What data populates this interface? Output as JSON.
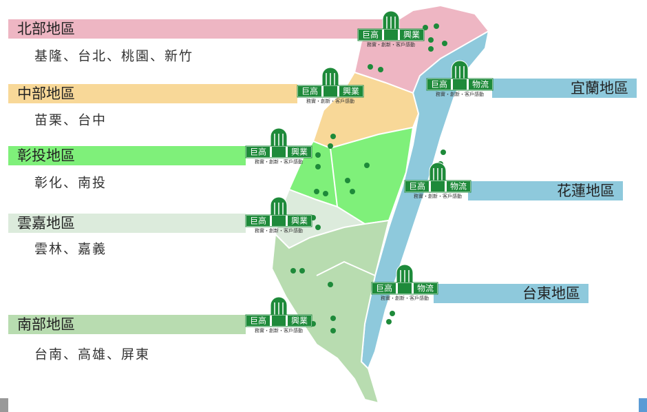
{
  "left_regions": [
    {
      "name": "北部地區",
      "cities": "基隆、台北、桃園、新竹"
    },
    {
      "name": "中部地區",
      "cities": "苗栗、台中"
    },
    {
      "name": "彰投地區",
      "cities": "彰化、南投"
    },
    {
      "name": "雲嘉地區",
      "cities": "雲林、嘉義"
    },
    {
      "name": "南部地區",
      "cities": "台南、高雄、屏東"
    }
  ],
  "right_regions": [
    {
      "name": "宜蘭地區"
    },
    {
      "name": "花蓮地區"
    },
    {
      "name": "台東地區"
    }
  ],
  "logos": [
    {
      "brand": "巨高",
      "division": "興業",
      "slogan": "務實・創新・客戶感動"
    },
    {
      "brand": "巨高",
      "division": "興業",
      "slogan": "務實・創新・客戶感動"
    },
    {
      "brand": "巨高",
      "division": "興業",
      "slogan": "務實・創新・客戶感動"
    },
    {
      "brand": "巨高",
      "division": "興業",
      "slogan": "務實・創新・客戶感動"
    },
    {
      "brand": "巨高",
      "division": "興業",
      "slogan": "務實・創新・客戶感動"
    },
    {
      "brand": "巨高",
      "division": "物流",
      "slogan": "務實・創新・客戶感動"
    },
    {
      "brand": "巨高",
      "division": "物流",
      "slogan": "務實・創新・客戶感動"
    },
    {
      "brand": "巨高",
      "division": "物流",
      "slogan": "務實・創新・客戶感動"
    }
  ]
}
